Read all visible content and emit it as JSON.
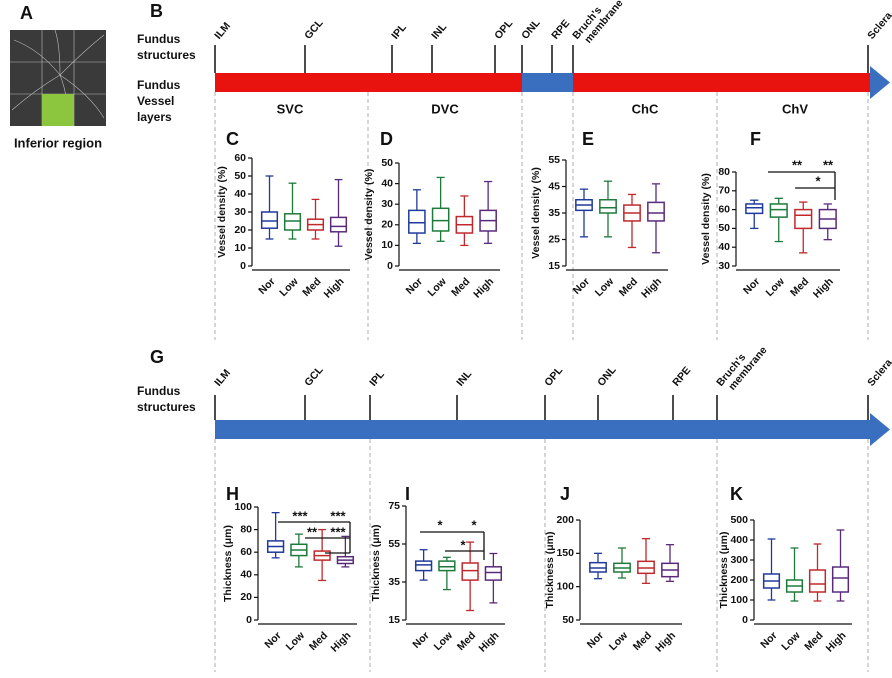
{
  "panel_a": {
    "letter": "A",
    "caption": "Inferior region"
  },
  "panel_b": {
    "letter": "B",
    "structures_heading": [
      "Fundus",
      "structures"
    ],
    "layers_heading": [
      "Fundus",
      "Vessel",
      "layers"
    ],
    "structures": [
      [
        "ILM"
      ],
      [
        "GCL"
      ],
      [
        "IPL"
      ],
      [
        "INL"
      ],
      [
        "OPL"
      ],
      [
        "ONL"
      ],
      [
        "RPE"
      ],
      [
        "Bruch's",
        "membrane"
      ],
      [
        "Sclera"
      ]
    ],
    "layers": [
      "SVC",
      "DVC",
      "ChC",
      "ChV"
    ]
  },
  "panel_g": {
    "letter": "G",
    "structures_heading": [
      "Fundus",
      "structures"
    ],
    "structures": [
      [
        "ILM"
      ],
      [
        "GCL"
      ],
      [
        "IPL"
      ],
      [
        "INL"
      ],
      [
        "OPL"
      ],
      [
        "ONL"
      ],
      [
        "RPE"
      ],
      [
        "Bruch's",
        "membrane"
      ],
      [
        "Sclera"
      ]
    ]
  },
  "chart_data": [
    {
      "type": "box",
      "panel": "C",
      "ylabel": "Vessel density (%)",
      "categories": [
        "Nor",
        "Low",
        "Med",
        "High"
      ],
      "colors": [
        "#1f3a9c",
        "#1e7a3a",
        "#c0282b",
        "#5a2a7a"
      ],
      "ylim": [
        0,
        60
      ],
      "yticks": [
        0,
        10,
        20,
        30,
        40,
        50,
        60
      ],
      "boxes": [
        {
          "min": 15,
          "q1": 21,
          "median": 25,
          "q3": 30,
          "max": 50
        },
        {
          "min": 15,
          "q1": 20,
          "median": 25,
          "q3": 29,
          "max": 46
        },
        {
          "min": 15,
          "q1": 20,
          "median": 23,
          "q3": 26,
          "max": 37
        },
        {
          "min": 11,
          "q1": 19,
          "median": 22,
          "q3": 27,
          "max": 48
        }
      ],
      "annotations": []
    },
    {
      "type": "box",
      "panel": "D",
      "ylabel": "Vessel density (%)",
      "categories": [
        "Nor",
        "Low",
        "Med",
        "High"
      ],
      "colors": [
        "#1f3a9c",
        "#1e7a3a",
        "#c0282b",
        "#5a2a7a"
      ],
      "ylim": [
        0,
        50
      ],
      "yticks": [
        0,
        10,
        20,
        30,
        40,
        50
      ],
      "boxes": [
        {
          "min": 11,
          "q1": 16,
          "median": 21,
          "q3": 27,
          "max": 37
        },
        {
          "min": 12,
          "q1": 17,
          "median": 22,
          "q3": 28,
          "max": 43
        },
        {
          "min": 10,
          "q1": 16,
          "median": 20,
          "q3": 24,
          "max": 34
        },
        {
          "min": 11,
          "q1": 17,
          "median": 22,
          "q3": 27,
          "max": 41
        }
      ],
      "annotations": []
    },
    {
      "type": "box",
      "panel": "E",
      "ylabel": "Vessel density (%)",
      "categories": [
        "Nor",
        "Low",
        "Med",
        "High"
      ],
      "colors": [
        "#1f3a9c",
        "#1e7a3a",
        "#c0282b",
        "#5a2a7a"
      ],
      "ylim": [
        15,
        55
      ],
      "yticks": [
        15,
        25,
        35,
        45,
        55
      ],
      "boxes": [
        {
          "min": 26,
          "q1": 36,
          "median": 38,
          "q3": 40,
          "max": 44
        },
        {
          "min": 26,
          "q1": 35,
          "median": 37,
          "q3": 40,
          "max": 47
        },
        {
          "min": 22,
          "q1": 32,
          "median": 35,
          "q3": 38,
          "max": 42
        },
        {
          "min": 20,
          "q1": 32,
          "median": 35,
          "q3": 39,
          "max": 46
        }
      ],
      "annotations": []
    },
    {
      "type": "box",
      "panel": "F",
      "ylabel": "Vessel density (%)",
      "categories": [
        "Nor",
        "Low",
        "Med",
        "High"
      ],
      "colors": [
        "#1f3a9c",
        "#1e7a3a",
        "#c0282b",
        "#5a2a7a"
      ],
      "ylim": [
        30,
        80
      ],
      "yticks": [
        30,
        40,
        50,
        60,
        70,
        80
      ],
      "boxes": [
        {
          "min": 50,
          "q1": 58,
          "median": 61,
          "q3": 63,
          "max": 65
        },
        {
          "min": 43,
          "q1": 56,
          "median": 60,
          "q3": 63,
          "max": 66
        },
        {
          "min": 37,
          "q1": 50,
          "median": 57,
          "q3": 60,
          "max": 64
        },
        {
          "min": 44,
          "q1": 50,
          "median": 55,
          "q3": 60,
          "max": 63
        }
      ],
      "annotations": [
        "**",
        "**",
        "*"
      ]
    },
    {
      "type": "box",
      "panel": "H",
      "ylabel": "Thickness (μm)",
      "categories": [
        "Nor",
        "Low",
        "Med",
        "High"
      ],
      "colors": [
        "#1f3a9c",
        "#1e7a3a",
        "#c0282b",
        "#5a2a7a"
      ],
      "ylim": [
        0,
        100
      ],
      "yticks": [
        0,
        20,
        40,
        60,
        80,
        100
      ],
      "boxes": [
        {
          "min": 55,
          "q1": 60,
          "median": 65,
          "q3": 70,
          "max": 95
        },
        {
          "min": 47,
          "q1": 57,
          "median": 62,
          "q3": 67,
          "max": 76
        },
        {
          "min": 35,
          "q1": 53,
          "median": 57,
          "q3": 61,
          "max": 80
        },
        {
          "min": 47,
          "q1": 50,
          "median": 53,
          "q3": 56,
          "max": 74
        }
      ],
      "annotations": [
        "***",
        "***",
        "**",
        "***"
      ]
    },
    {
      "type": "box",
      "panel": "I",
      "ylabel": "Thickness (μm)",
      "categories": [
        "Nor",
        "Low",
        "Med",
        "High"
      ],
      "colors": [
        "#1f3a9c",
        "#1e7a3a",
        "#c0282b",
        "#5a2a7a"
      ],
      "ylim": [
        15,
        75
      ],
      "yticks": [
        15,
        35,
        55,
        75
      ],
      "boxes": [
        {
          "min": 36,
          "q1": 41,
          "median": 44,
          "q3": 46,
          "max": 52
        },
        {
          "min": 31,
          "q1": 41,
          "median": 43,
          "q3": 46,
          "max": 48
        },
        {
          "min": 20,
          "q1": 36,
          "median": 41,
          "q3": 45,
          "max": 56
        },
        {
          "min": 24,
          "q1": 36,
          "median": 40,
          "q3": 43,
          "max": 50
        }
      ],
      "annotations": [
        "*",
        "*",
        "*"
      ]
    },
    {
      "type": "box",
      "panel": "J",
      "ylabel": "Thickness (μm)",
      "categories": [
        "Nor",
        "Low",
        "Med",
        "High"
      ],
      "colors": [
        "#1f3a9c",
        "#1e7a3a",
        "#c0282b",
        "#5a2a7a"
      ],
      "ylim": [
        50,
        200
      ],
      "yticks": [
        50,
        100,
        150,
        200
      ],
      "boxes": [
        {
          "min": 112,
          "q1": 122,
          "median": 128,
          "q3": 136,
          "max": 150
        },
        {
          "min": 113,
          "q1": 122,
          "median": 128,
          "q3": 135,
          "max": 158
        },
        {
          "min": 105,
          "q1": 120,
          "median": 128,
          "q3": 138,
          "max": 172
        },
        {
          "min": 108,
          "q1": 115,
          "median": 125,
          "q3": 135,
          "max": 163
        }
      ],
      "annotations": []
    },
    {
      "type": "box",
      "panel": "K",
      "ylabel": "Thickness (μm)",
      "categories": [
        "Nor",
        "Low",
        "Med",
        "High"
      ],
      "colors": [
        "#1f3a9c",
        "#1e7a3a",
        "#c0282b",
        "#5a2a7a"
      ],
      "ylim": [
        0,
        500
      ],
      "yticks": [
        0,
        100,
        200,
        300,
        400,
        500
      ],
      "boxes": [
        {
          "min": 100,
          "q1": 160,
          "median": 195,
          "q3": 230,
          "max": 405
        },
        {
          "min": 95,
          "q1": 140,
          "median": 170,
          "q3": 200,
          "max": 360
        },
        {
          "min": 95,
          "q1": 140,
          "median": 180,
          "q3": 250,
          "max": 380
        },
        {
          "min": 95,
          "q1": 140,
          "median": 210,
          "q3": 265,
          "max": 450
        }
      ],
      "annotations": []
    }
  ]
}
